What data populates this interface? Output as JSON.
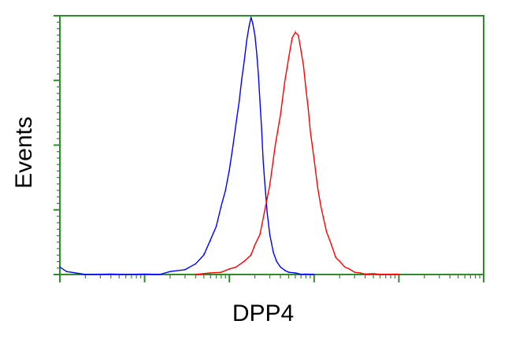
{
  "chart_data": {
    "type": "line",
    "title": "",
    "xlabel": "DPP4",
    "ylabel": "Events",
    "x_scale": "log",
    "xlim": [
      1,
      100000
    ],
    "ylim": [
      0,
      100
    ],
    "grid": false,
    "legend": "none",
    "frame_color": "#2e8b2e",
    "series": [
      {
        "color": "#0000ff",
        "x": [
          1,
          1.2,
          2,
          4,
          6,
          10,
          15,
          20,
          30,
          40,
          50,
          60,
          70,
          80,
          90,
          100,
          110,
          120,
          130,
          140,
          150,
          160,
          170,
          180,
          190,
          200,
          210,
          220,
          230,
          240,
          250,
          260,
          280,
          300,
          330,
          360,
          400,
          450,
          500,
          600,
          700,
          800,
          1000
        ],
        "y": [
          3,
          1,
          0,
          0,
          0,
          0,
          0,
          1,
          2,
          4,
          8,
          13,
          19,
          26,
          33,
          40,
          50,
          58,
          67,
          75,
          83,
          90,
          96,
          99,
          97,
          92,
          86,
          77,
          67,
          56,
          45,
          36,
          24,
          15,
          9,
          5,
          3,
          1.5,
          1,
          0.5,
          0.2,
          0,
          0
        ]
      },
      {
        "color": "#ff0000",
        "x": [
          40,
          60,
          80,
          100,
          120,
          150,
          180,
          200,
          230,
          260,
          300,
          350,
          400,
          450,
          500,
          550,
          600,
          650,
          700,
          750,
          800,
          850,
          900,
          1000,
          1100,
          1200,
          1400,
          1600,
          1800,
          2000,
          2300,
          2600,
          3000,
          3500,
          4000,
          5000,
          6000,
          10000
        ],
        "y": [
          0,
          0.5,
          1,
          2,
          3,
          5,
          8,
          11,
          16,
          24,
          35,
          50,
          62,
          74,
          84,
          91,
          94,
          92,
          87,
          80,
          72,
          64,
          56,
          44,
          34,
          26,
          17,
          11,
          7,
          5,
          3,
          2,
          1,
          0.5,
          0.3,
          0.2,
          0,
          0
        ]
      }
    ]
  }
}
